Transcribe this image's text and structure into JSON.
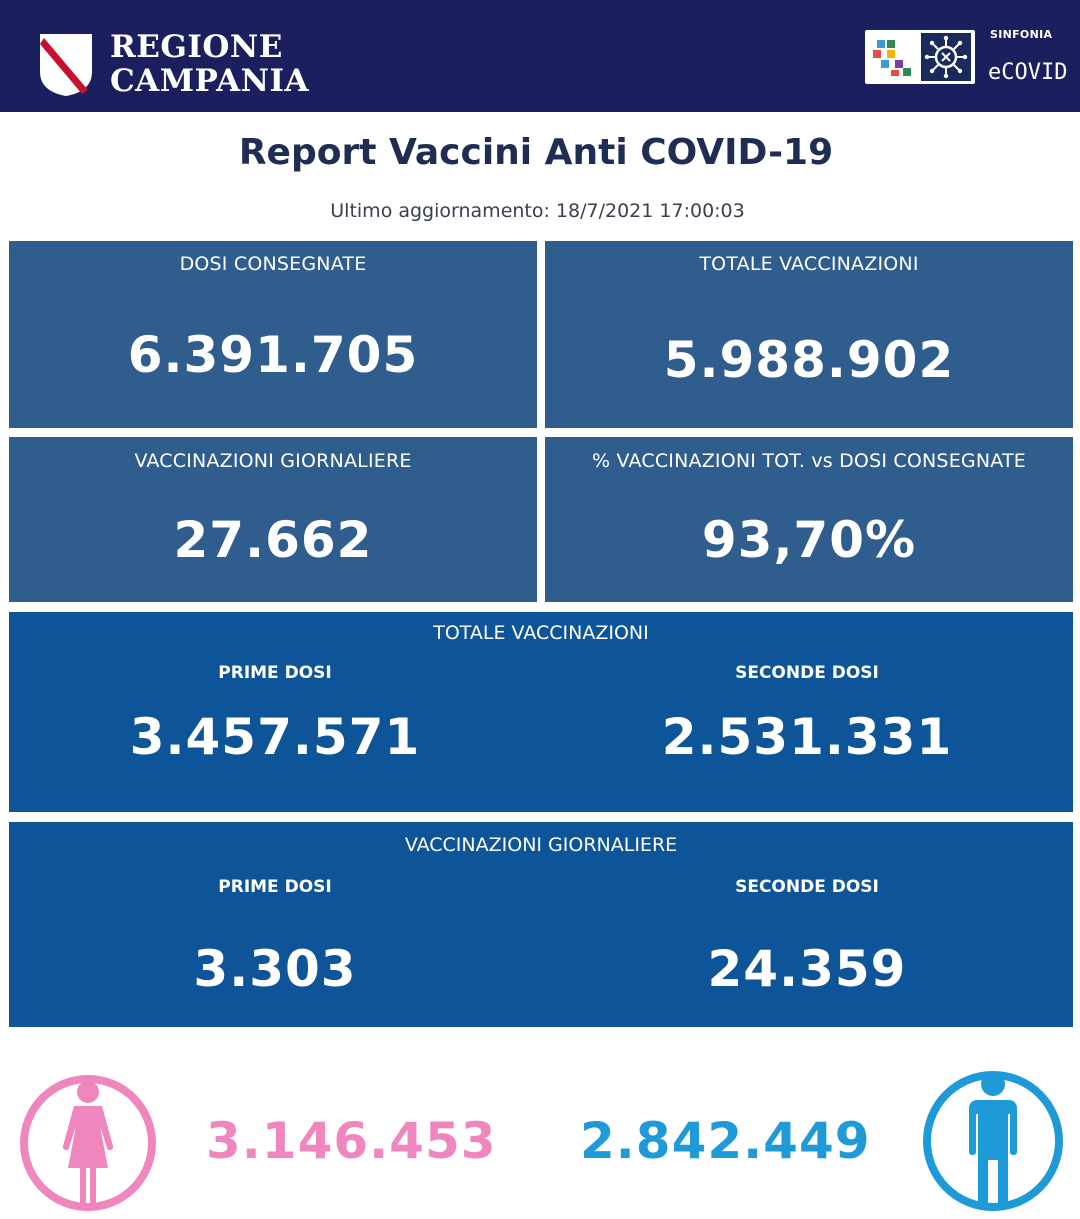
{
  "header": {
    "region_line1": "REGIONE",
    "region_line2": "CAMPANIA",
    "brand_small": "SINFONIA",
    "brand_main": "eCOVID"
  },
  "title": "Report Vaccini Anti COVID-19",
  "updated": "Ultimo aggiornamento: 18/7/2021  17:00:03",
  "cards": {
    "dosi_consegnate": {
      "label": "DOSI  CONSEGNATE",
      "value": "6.391.705"
    },
    "totale_vaccinazioni": {
      "label": "TOTALE VACCINAZIONI",
      "value": "5.988.902"
    },
    "vaccinazioni_giornaliere": {
      "label": "VACCINAZIONI GIORNALIERE",
      "value": "27.662"
    },
    "percentuale": {
      "label": "% VACCINAZIONI TOT. vs DOSI CONSEGNATE",
      "value": "93,70%"
    }
  },
  "panel_totale": {
    "title": "TOTALE VACCINAZIONI",
    "prime_label": "PRIME DOSI",
    "prime_value": "3.457.571",
    "seconde_label": "SECONDE DOSI",
    "seconde_value": "2.531.331"
  },
  "panel_giornaliere": {
    "title": "VACCINAZIONI GIORNALIERE",
    "prime_label": "PRIME DOSI",
    "prime_value": "3.303",
    "seconde_label": "SECONDE DOSI",
    "seconde_value": "24.359"
  },
  "gender": {
    "female_value": "3.146.453",
    "male_value": "2.842.449",
    "female_color": "#ef86bd",
    "male_color": "#1e9ad8",
    "female_icon": "female-person-icon",
    "male_icon": "male-person-icon"
  },
  "colors": {
    "header_bg": "#1b1f5e",
    "card_bg": "#2f5e8e",
    "panel_bg": "#0e5499",
    "title_text": "#1f2d52"
  }
}
